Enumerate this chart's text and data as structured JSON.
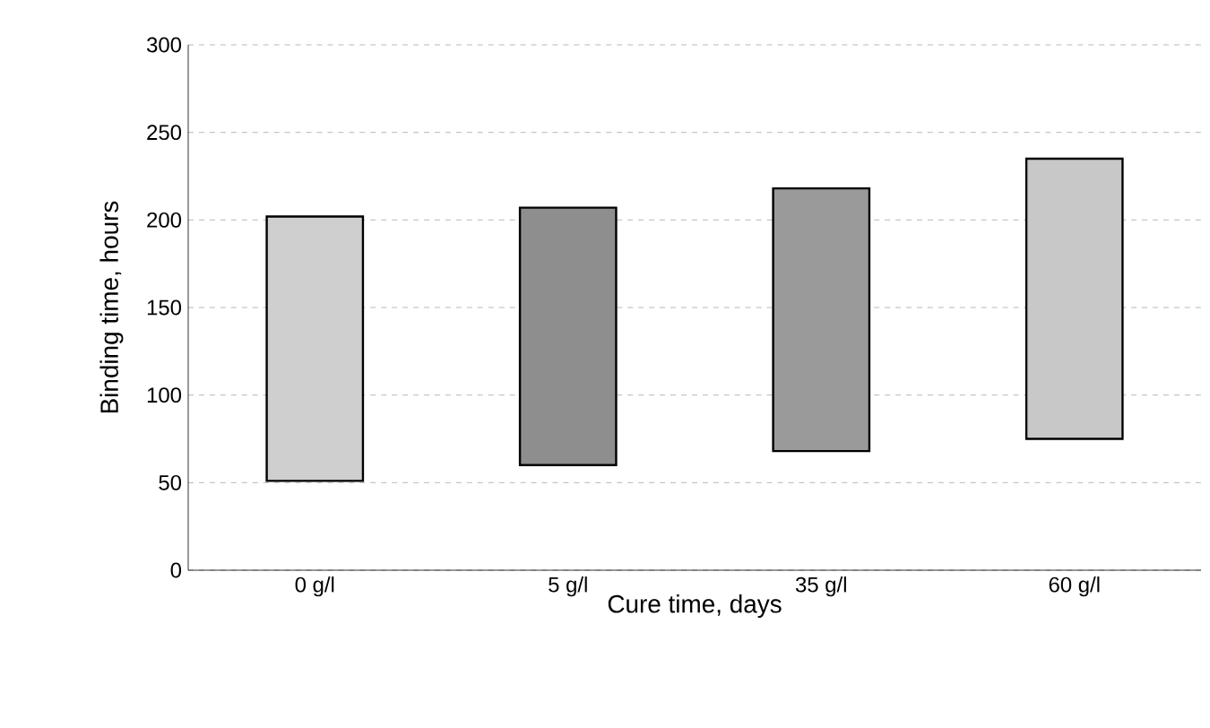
{
  "chart_data": {
    "type": "bar",
    "xlabel": "Cure time, days",
    "ylabel": "Binding time, hours",
    "categories": [
      "0 g/l",
      "5 g/l",
      "35 g/l",
      "60 g/l"
    ],
    "base": [
      51,
      60,
      68,
      75
    ],
    "values": [
      151,
      147,
      150,
      160
    ],
    "colors": [
      "#cfcfcf",
      "#8e8e8e",
      "#9a9a9a",
      "#c8c8c8"
    ],
    "ylim": [
      0,
      300
    ],
    "yticks": [
      0,
      50,
      100,
      150,
      200,
      250,
      300
    ],
    "grid": "y"
  }
}
